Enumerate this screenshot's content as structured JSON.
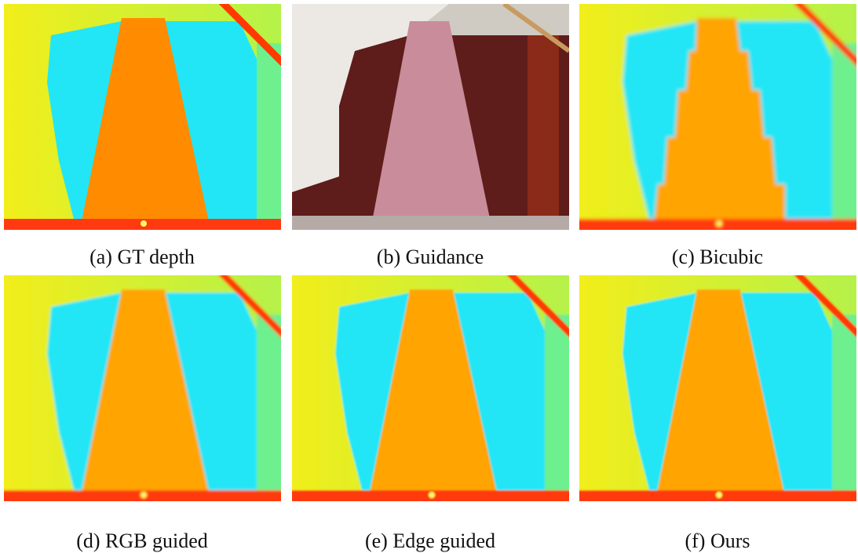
{
  "panels": [
    {
      "caption": "(a) GT depth"
    },
    {
      "caption": "(b) Guidance"
    },
    {
      "caption": "(c) Bicubic"
    },
    {
      "caption": "(d) RGB guided"
    },
    {
      "caption": "(e) Edge guided"
    },
    {
      "caption": "(f) Ours"
    }
  ]
}
